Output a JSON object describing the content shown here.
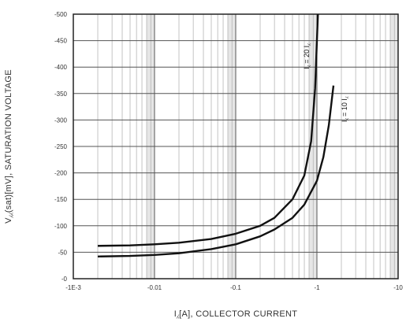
{
  "chart_data": {
    "type": "line",
    "xlabel": "I⁁[A], COLLECTOR CURRENT",
    "ylabel": "V⁁⁁(sat)[mV], SATURATION VOLTAGE",
    "xscale": "log",
    "xlim": [
      0.001,
      10
    ],
    "ylim": [
      0,
      -500
    ],
    "x_ticks": [
      0.001,
      0.01,
      0.1,
      1,
      10
    ],
    "x_tick_labels": [
      "-1E-3",
      "-0.01",
      "-0.1",
      "-1",
      "-10"
    ],
    "y_ticks": [
      0,
      -50,
      -100,
      -150,
      -200,
      -250,
      -300,
      -350,
      -400,
      -450,
      -500
    ],
    "y_tick_labels": [
      "-0",
      "-50",
      "-100",
      "-150",
      "-200",
      "-250",
      "-300",
      "-350",
      "-400",
      "-450",
      "-500"
    ],
    "grid": true,
    "series": [
      {
        "name": "I⁁ = 20 I⁁",
        "x": [
          0.002,
          0.005,
          0.01,
          0.02,
          0.05,
          0.1,
          0.2,
          0.3,
          0.5,
          0.7,
          0.85,
          0.95,
          1.0,
          1.03
        ],
        "y": [
          -62,
          -63,
          -65,
          -68,
          -75,
          -85,
          -100,
          -115,
          -150,
          -195,
          -260,
          -360,
          -450,
          -500
        ]
      },
      {
        "name": "I⁁ = 10 I⁁",
        "x": [
          0.002,
          0.005,
          0.01,
          0.02,
          0.05,
          0.1,
          0.2,
          0.3,
          0.5,
          0.7,
          1.0,
          1.2,
          1.4,
          1.6
        ],
        "y": [
          -42,
          -43,
          -45,
          -48,
          -56,
          -65,
          -80,
          -93,
          -115,
          -140,
          -185,
          -230,
          -290,
          -365
        ]
      }
    ],
    "curve_labels": [
      "I⁁ = 20 I⁁",
      "I⁁ = 10 I⁁"
    ]
  }
}
